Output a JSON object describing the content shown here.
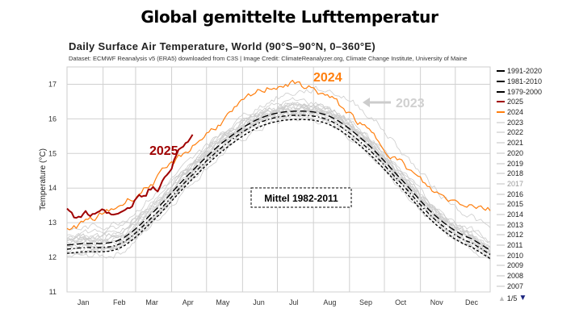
{
  "header": {
    "title": "Global gemittelte Lufttemperatur"
  },
  "chart_data": {
    "type": "line",
    "title": "Daily Surface Air Temperature, World (90°S–90°N, 0–360°E)",
    "subtitle": "Dataset: ECMWF Reanalysis v5 (ERA5) downloaded from C3S | Image Credit: ClimateReanalyzer.org, Climate Change Institute, University of Maine",
    "ylabel": "Temperature (°C)",
    "xlabel": "",
    "ylim": [
      11,
      17.5
    ],
    "yticks": [
      "11",
      "12",
      "13",
      "14",
      "15",
      "16",
      "17"
    ],
    "xticks": [
      "Jan",
      "Feb",
      "Mar",
      "Apr",
      "May",
      "Jun",
      "Jul",
      "Aug",
      "Sep",
      "Oct",
      "Nov",
      "Dec"
    ],
    "x_days": [
      15,
      46,
      74,
      105,
      135,
      166,
      196,
      227,
      258,
      288,
      319,
      349
    ],
    "grid": true,
    "legend_position": "right",
    "series": [
      {
        "name": "1991-2020",
        "color": "#000000",
        "style": "long-dash",
        "values": [
          12.4,
          12.5,
          13.27,
          14.37,
          15.32,
          16.0,
          16.22,
          16.07,
          15.32,
          14.27,
          13.17,
          12.54
        ]
      },
      {
        "name": "1981-2010",
        "color": "#000000",
        "style": "dash-dot",
        "values": [
          12.28,
          12.38,
          13.15,
          14.25,
          15.2,
          15.88,
          16.1,
          15.95,
          15.2,
          14.15,
          13.05,
          12.42
        ]
      },
      {
        "name": "1979-2000",
        "color": "#000000",
        "style": "short-dash",
        "values": [
          12.16,
          12.26,
          13.03,
          14.13,
          15.08,
          15.76,
          15.98,
          15.83,
          15.08,
          14.03,
          12.93,
          12.3
        ]
      },
      {
        "name": "2025",
        "color": "#a00000",
        "style": "solid",
        "x_days": [
          1,
          10,
          15,
          25,
          32,
          40,
          46,
          55,
          60,
          67,
          74,
          82,
          91,
          98,
          105,
          110
        ],
        "values": [
          13.4,
          13.2,
          13.3,
          13.25,
          13.3,
          13.35,
          13.25,
          13.3,
          13.75,
          13.85,
          14.05,
          14.1,
          14.7,
          15.05,
          15.3,
          15.5
        ]
      },
      {
        "name": "2024",
        "color": "#ff7f0e",
        "style": "solid",
        "values": [
          13.0,
          13.5,
          14.15,
          15.1,
          15.95,
          16.77,
          17.0,
          16.6,
          15.7,
          14.75,
          13.85,
          13.55
        ]
      },
      {
        "name": "2023",
        "color": "#cccccc",
        "style": "solid",
        "values": [
          12.6,
          12.75,
          13.55,
          14.6,
          15.6,
          16.35,
          16.75,
          16.8,
          16.2,
          15.1,
          13.95,
          13.2
        ]
      },
      {
        "name": "2022",
        "color": "#cccccc",
        "style": "solid",
        "values": [
          12.55,
          12.6,
          13.4,
          14.5,
          15.45,
          16.1,
          16.4,
          16.2,
          15.45,
          14.4,
          13.3,
          12.65
        ]
      },
      {
        "name": "2021",
        "color": "#cccccc",
        "style": "solid",
        "values": [
          12.45,
          12.55,
          13.35,
          14.45,
          15.4,
          16.05,
          16.35,
          16.2,
          15.45,
          14.45,
          13.35,
          12.65
        ]
      },
      {
        "name": "2020",
        "color": "#cccccc",
        "style": "solid",
        "values": [
          12.75,
          12.85,
          13.6,
          14.6,
          15.5,
          16.15,
          16.4,
          16.15,
          15.45,
          14.35,
          13.3,
          12.6
        ]
      },
      {
        "name": "2019",
        "color": "#cccccc",
        "style": "solid",
        "values": [
          12.55,
          12.7,
          13.45,
          14.55,
          15.5,
          16.2,
          16.5,
          16.3,
          15.55,
          14.45,
          13.35,
          12.75
        ]
      },
      {
        "name": "2018",
        "color": "#cccccc",
        "style": "solid",
        "values": [
          12.45,
          12.5,
          13.3,
          14.45,
          15.4,
          16.05,
          16.3,
          16.15,
          15.4,
          14.35,
          13.25,
          12.6
        ]
      },
      {
        "name": "2017",
        "color": "#cccccc",
        "style": "solid",
        "values": [
          12.6,
          12.7,
          13.45,
          14.5,
          15.4,
          16.05,
          16.35,
          16.2,
          15.4,
          14.35,
          13.25,
          12.6
        ]
      },
      {
        "name": "2016",
        "color": "#cccccc",
        "style": "solid",
        "values": [
          12.85,
          13.05,
          13.75,
          14.7,
          15.55,
          16.15,
          16.4,
          16.3,
          15.45,
          14.4,
          13.35,
          12.6
        ]
      },
      {
        "name": "2015",
        "color": "#cccccc",
        "style": "solid",
        "values": [
          12.4,
          12.45,
          13.3,
          14.4,
          15.35,
          16.05,
          16.3,
          16.2,
          15.5,
          14.5,
          13.4,
          12.8
        ]
      },
      {
        "name": "2014",
        "color": "#cccccc",
        "style": "solid",
        "values": [
          12.35,
          12.4,
          13.2,
          14.35,
          15.35,
          16.0,
          16.25,
          16.1,
          15.35,
          14.3,
          13.2,
          12.55
        ]
      },
      {
        "name": "2013",
        "color": "#cccccc",
        "style": "solid",
        "values": [
          12.35,
          12.4,
          13.2,
          14.3,
          15.25,
          15.95,
          16.2,
          16.05,
          15.3,
          14.25,
          13.15,
          12.5
        ]
      },
      {
        "name": "2012",
        "color": "#cccccc",
        "style": "solid",
        "values": [
          12.2,
          12.3,
          13.1,
          14.25,
          15.25,
          15.95,
          16.2,
          16.1,
          15.35,
          14.25,
          13.15,
          12.45
        ]
      },
      {
        "name": "2011",
        "color": "#cccccc",
        "style": "solid",
        "values": [
          12.2,
          12.25,
          13.05,
          14.2,
          15.2,
          15.9,
          16.15,
          16.0,
          15.25,
          14.15,
          13.05,
          12.4
        ]
      },
      {
        "name": "2010",
        "color": "#cccccc",
        "style": "solid",
        "values": [
          12.5,
          12.6,
          13.4,
          14.45,
          15.35,
          15.95,
          16.2,
          16.05,
          15.25,
          14.1,
          13.05,
          12.35
        ]
      },
      {
        "name": "2009",
        "color": "#cccccc",
        "style": "solid",
        "values": [
          12.25,
          12.3,
          13.1,
          14.25,
          15.2,
          15.95,
          16.25,
          16.15,
          15.35,
          14.3,
          13.2,
          12.55
        ]
      },
      {
        "name": "2008",
        "color": "#cccccc",
        "style": "solid",
        "values": [
          12.05,
          12.15,
          12.95,
          14.05,
          15.0,
          15.7,
          16.0,
          15.85,
          15.1,
          14.05,
          12.95,
          12.3
        ]
      },
      {
        "name": "2007",
        "color": "#cccccc",
        "style": "solid",
        "values": [
          12.35,
          12.4,
          13.15,
          14.2,
          15.15,
          15.85,
          16.1,
          15.95,
          15.2,
          14.1,
          13.0,
          12.35
        ]
      }
    ],
    "annotations": {
      "label_2025": "2025",
      "label_2024": "2024",
      "label_2023": "2023",
      "mean_box": "Mittel 1982-2011"
    },
    "legend_pager": "1/5"
  }
}
